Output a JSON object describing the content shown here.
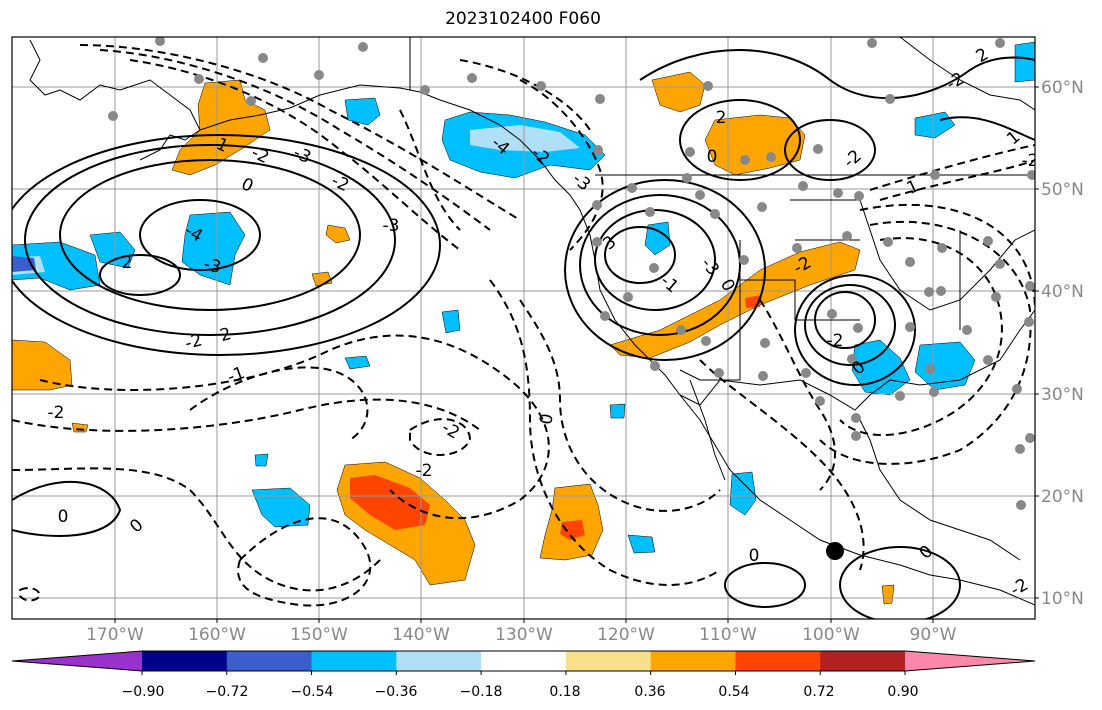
{
  "title": "2023102400 F060",
  "lon_labels": [
    "170°W",
    "160°W",
    "150°W",
    "140°W",
    "130°W",
    "120°W",
    "110°W",
    "100°W",
    "90°W"
  ],
  "lat_labels": [
    "60°N",
    "50°N",
    "40°N",
    "30°N",
    "20°N",
    "10°N"
  ],
  "colorbar": {
    "colors": [
      "#9932cc",
      "#00008b",
      "#3a5fcd",
      "#00bfff",
      "#b0e0f8",
      "#ffffff",
      "#f8e08a",
      "#ffa500",
      "#ff4500",
      "#b22222",
      "#ff88aa"
    ],
    "tick_labels": [
      "−0.90",
      "−0.72",
      "−0.54",
      "−0.36",
      "−0.18",
      "0.18",
      "0.36",
      "0.54",
      "0.72",
      "0.90"
    ]
  },
  "contour_labels": [
    {
      "text": "-3"
    },
    {
      "text": "-2"
    },
    {
      "text": "1"
    },
    {
      "text": "0"
    },
    {
      "text": "-2"
    },
    {
      "text": "-3"
    },
    {
      "text": "2"
    },
    {
      "text": "-4"
    },
    {
      "text": "-3"
    },
    {
      "text": "-2"
    },
    {
      "text": "2"
    },
    {
      "text": "-1"
    },
    {
      "text": "-2"
    },
    {
      "text": "0"
    },
    {
      "text": "-2"
    },
    {
      "text": "-2"
    },
    {
      "text": "0"
    },
    {
      "text": "0"
    },
    {
      "text": "-3"
    },
    {
      "text": "-4"
    },
    {
      "text": "-2"
    },
    {
      "text": "2"
    },
    {
      "text": "0"
    },
    {
      "text": "-2"
    },
    {
      "text": "-2"
    },
    {
      "text": "1"
    },
    {
      "text": "-2"
    },
    {
      "text": "2"
    },
    {
      "text": "-2"
    },
    {
      "text": "3"
    },
    {
      "text": "-1"
    },
    {
      "text": "-3"
    },
    {
      "text": "0"
    },
    {
      "text": "0"
    },
    {
      "text": "0"
    },
    {
      "text": "1"
    },
    {
      "text": "-2"
    },
    {
      "text": "0"
    },
    {
      "text": "-2"
    }
  ]
}
